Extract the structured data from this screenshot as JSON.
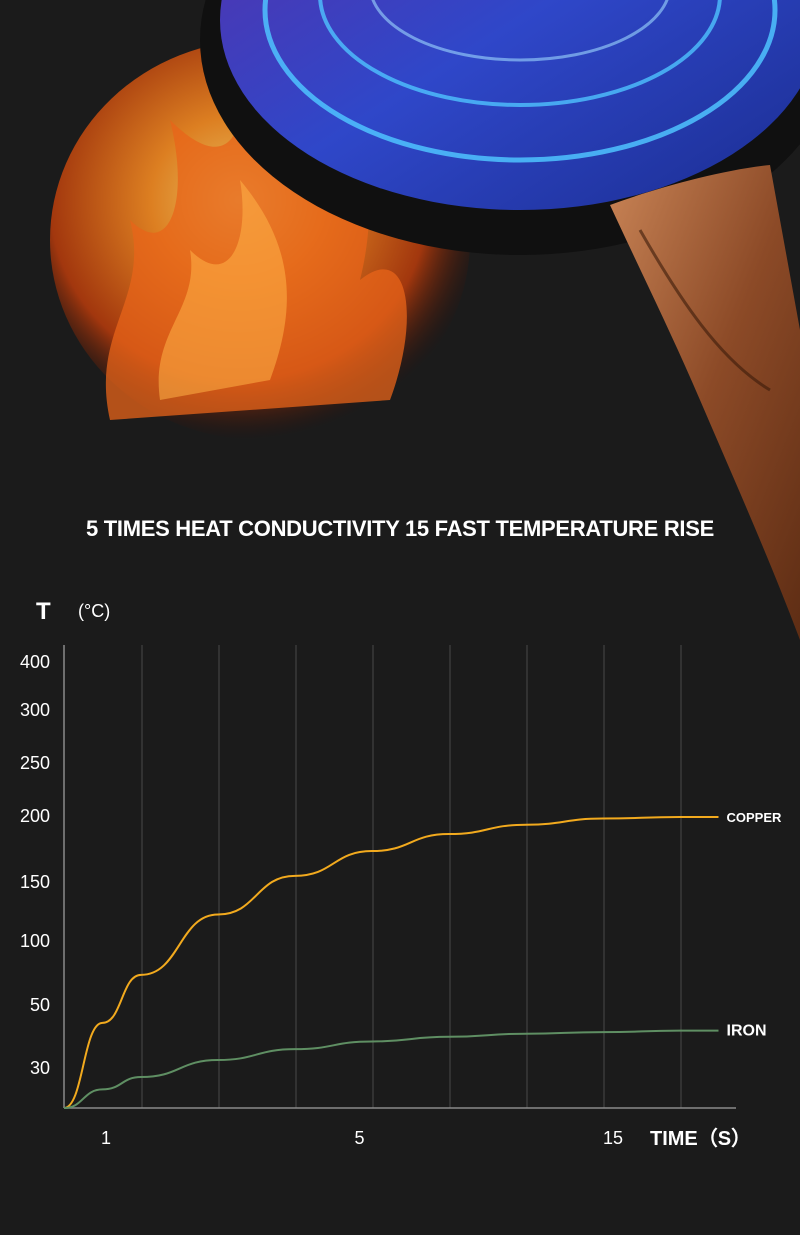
{
  "headline": "5 TIMES HEAT CONDUCTIVITY 15 FAST TEMPERATURE RISE",
  "colors": {
    "background": "#1b1b1b",
    "copper_line": "#f2aa1e",
    "iron_line": "#5f8f63",
    "flame": "#e8641a",
    "pan_blue": "#2b3fb8",
    "handle": "#a0562f"
  },
  "illustration": {
    "icons": [
      "flame-icon",
      "frying-pan-icon",
      "wooden-handle-icon"
    ]
  },
  "chart_data": {
    "type": "line",
    "ylabel_symbol": "T",
    "ylabel_unit": "(°C)",
    "xlabel": "TIME（S）",
    "y_ticks": [
      "400",
      "300",
      "250",
      "200",
      "150",
      "100",
      "50",
      "30"
    ],
    "x_ticks": [
      {
        "label": "1",
        "index": 1
      },
      {
        "label": "5",
        "index": 4
      },
      {
        "label": "15",
        "index": 7
      }
    ],
    "grid": true,
    "series": [
      {
        "name": "COPPER",
        "color": "#f2aa1e",
        "x": [
          0,
          0.5,
          1,
          2,
          3,
          4,
          5,
          6,
          7,
          8,
          8.5
        ],
        "y": [
          0,
          55,
          86,
          125,
          150,
          166,
          177,
          183,
          187,
          188,
          188
        ]
      },
      {
        "name": "IRON",
        "color": "#5f8f63",
        "x": [
          0,
          0.5,
          1,
          2,
          3,
          4,
          5,
          6,
          7,
          8,
          8.5
        ],
        "y": [
          0,
          12,
          20,
          31,
          38,
          43,
          46,
          48,
          49,
          50,
          50
        ]
      }
    ]
  }
}
